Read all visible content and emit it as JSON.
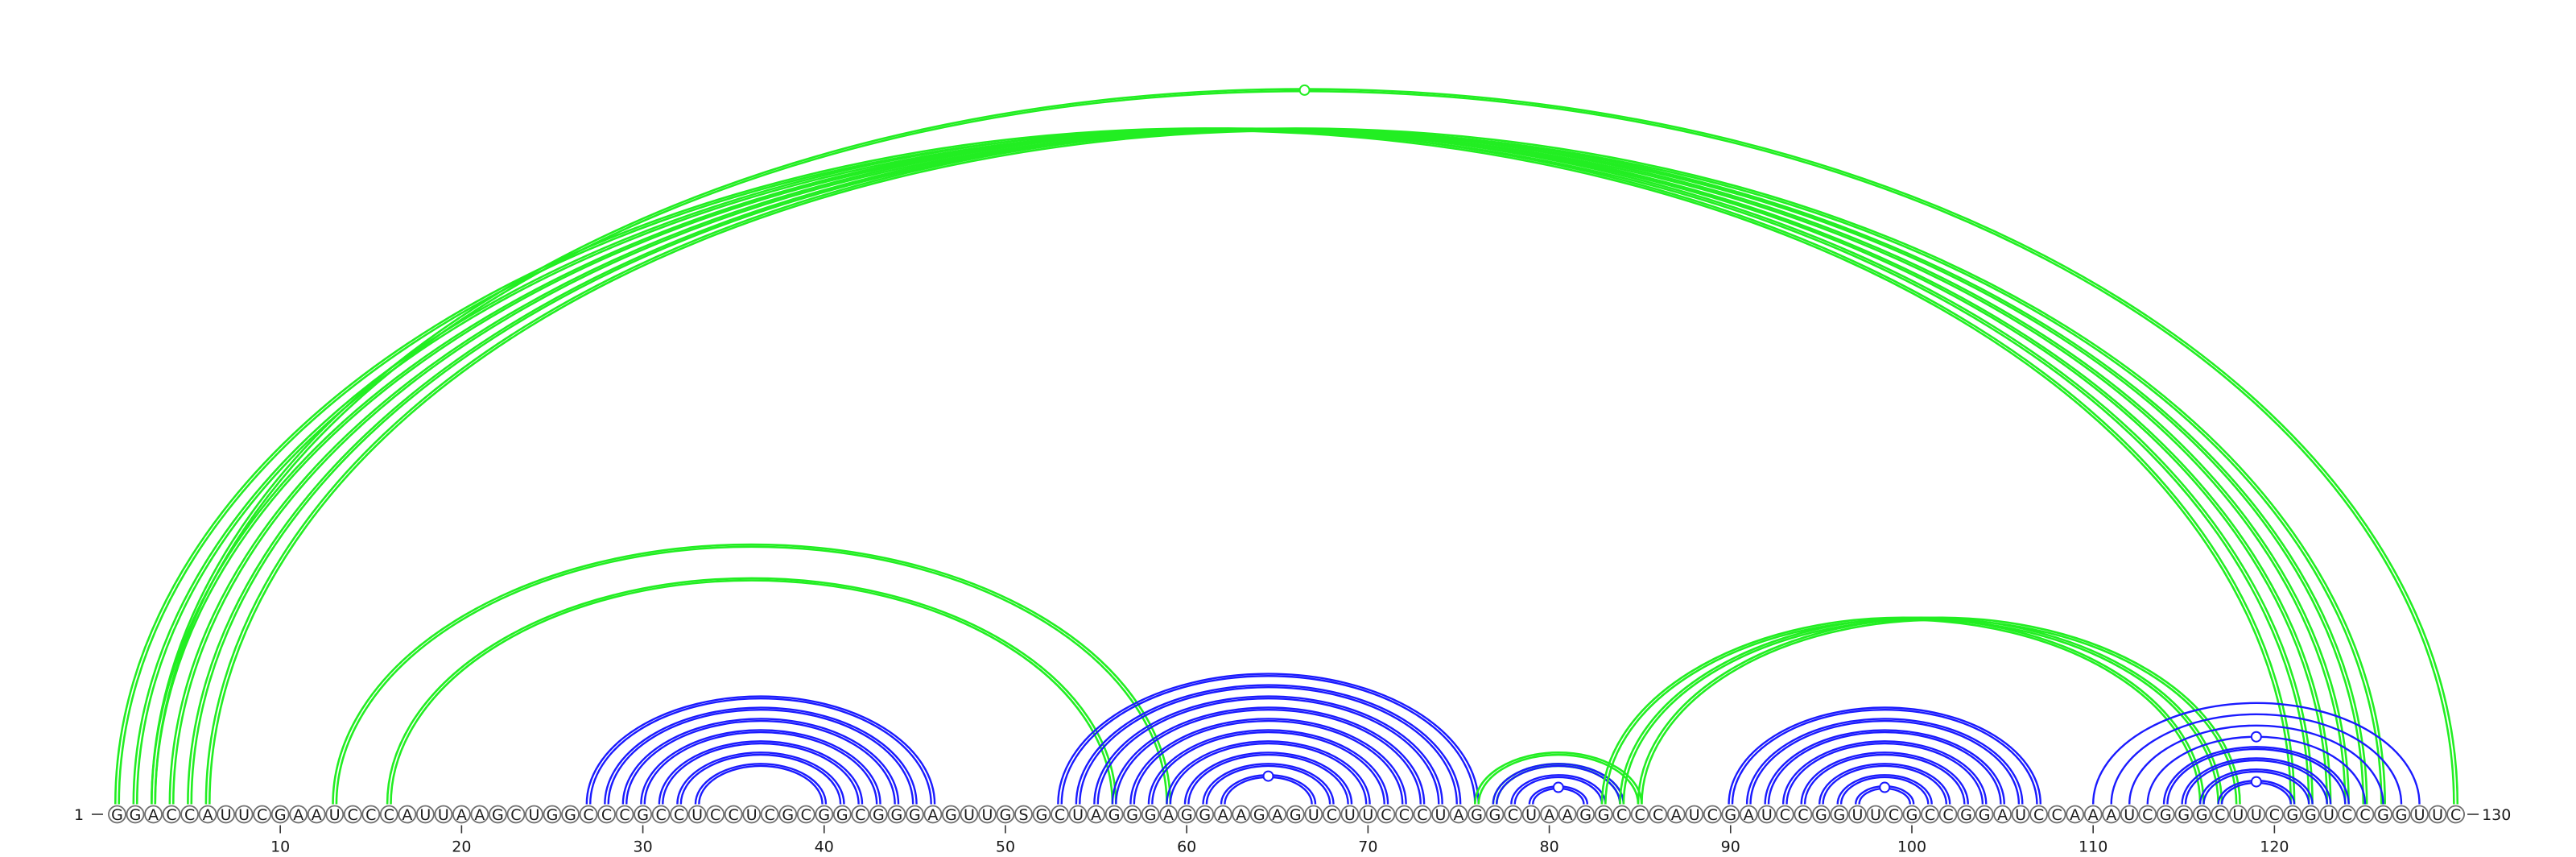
{
  "sequence": "GGACCAUUCGAAUCCCAUUAAGCUGGCCCGCCUCCUCGCGGCGGGAGUUGSGCUAGGGAGGAAGAGUCUUCCCUAGGCUAAGGCCCAUCGAUCCGGUUCGCCGGAUCCAAAUCGGGCUUCGGUCCGGUUC",
  "start_label": "1",
  "end_label": "130",
  "ticks": [
    10,
    20,
    30,
    40,
    50,
    60,
    70,
    80,
    90,
    100,
    110,
    120
  ],
  "colors": {
    "local_arc": "#1a1aff",
    "long_arc": "#22ee22",
    "nucleotide_stroke": "#6e6e6e"
  },
  "arc_groups": [
    {
      "color": "long_arc",
      "pairs": [
        [
          1,
          121
        ],
        [
          2,
          122
        ],
        [
          3,
          123
        ],
        [
          4,
          124
        ],
        [
          5,
          125
        ],
        [
          6,
          126
        ]
      ],
      "double": true
    },
    {
      "color": "long_arc",
      "pairs": [
        [
          3,
          130
        ]
      ],
      "double": true,
      "marker": true
    },
    {
      "color": "long_arc",
      "pairs": [
        [
          13,
          59
        ]
      ],
      "double": true
    },
    {
      "color": "long_arc",
      "pairs": [
        [
          16,
          56
        ]
      ],
      "double": true
    },
    {
      "color": "local_arc",
      "pairs": [
        [
          27,
          46
        ],
        [
          28,
          45
        ],
        [
          29,
          44
        ],
        [
          30,
          43
        ],
        [
          31,
          42
        ],
        [
          32,
          41
        ],
        [
          33,
          40
        ]
      ],
      "double": true
    },
    {
      "color": "local_arc",
      "pairs": [
        [
          53,
          76
        ],
        [
          54,
          75
        ],
        [
          55,
          74
        ],
        [
          56,
          73
        ],
        [
          57,
          72
        ],
        [
          58,
          71
        ],
        [
          59,
          70
        ],
        [
          60,
          69
        ],
        [
          61,
          68
        ],
        [
          62,
          67
        ]
      ],
      "double": true,
      "marker": true
    },
    {
      "color": "long_arc",
      "pairs": [
        [
          76,
          85
        ],
        [
          77,
          84
        ]
      ],
      "double": true
    },
    {
      "color": "local_arc",
      "pairs": [
        [
          77,
          84
        ],
        [
          78,
          83
        ],
        [
          79,
          82
        ]
      ],
      "double": true,
      "marker": true
    },
    {
      "color": "long_arc",
      "pairs": [
        [
          83,
          116
        ],
        [
          84,
          117
        ],
        [
          85,
          118
        ]
      ],
      "double": true
    },
    {
      "color": "local_arc",
      "pairs": [
        [
          90,
          107
        ],
        [
          91,
          106
        ],
        [
          92,
          105
        ],
        [
          93,
          104
        ],
        [
          94,
          103
        ],
        [
          95,
          102
        ],
        [
          96,
          101
        ],
        [
          97,
          100
        ]
      ],
      "double": true,
      "marker": true
    },
    {
      "color": "local_arc",
      "pairs": [
        [
          110,
          128
        ],
        [
          111,
          127
        ],
        [
          112,
          126
        ],
        [
          113,
          125
        ]
      ],
      "double": false,
      "marker": true
    },
    {
      "color": "local_arc",
      "pairs": [
        [
          114,
          124
        ],
        [
          115,
          123
        ],
        [
          116,
          122
        ],
        [
          117,
          121
        ]
      ],
      "double": true,
      "marker": true
    }
  ]
}
